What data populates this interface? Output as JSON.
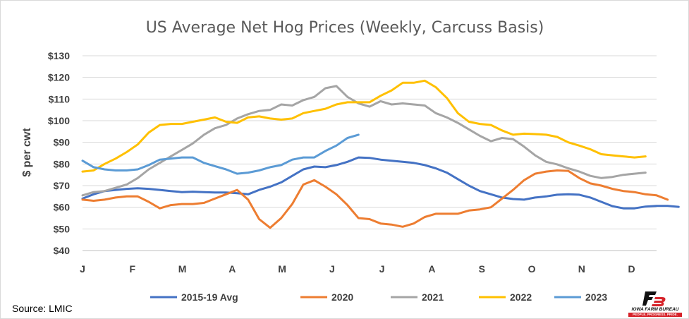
{
  "chart_data": {
    "type": "line",
    "title": "US Average Net Hog Prices (Weekly, Carcuss Basis)",
    "ylabel": "$ per cwt",
    "xlabel": "",
    "ylim": [
      40,
      130
    ],
    "yticks": [
      40,
      50,
      60,
      70,
      80,
      90,
      100,
      110,
      120,
      130
    ],
    "ytick_labels": [
      "$40",
      "$50",
      "$60",
      "$70",
      "$80",
      "$90",
      "$100",
      "$110",
      "$120",
      "$130"
    ],
    "xticks": [
      "J",
      "F",
      "M",
      "A",
      "M",
      "J",
      "J",
      "A",
      "S",
      "O",
      "N",
      "D"
    ],
    "x_unit": "week of year (1-53)",
    "grid": true,
    "legend_position": "bottom",
    "source": "Source: LMIC",
    "series": [
      {
        "name": "2015-19 Avg",
        "color": "#4472c4",
        "values": [
          64,
          66,
          67.5,
          68,
          68.5,
          68.8,
          68.5,
          68,
          67.5,
          67,
          67.2,
          67,
          66.8,
          66.8,
          66.5,
          66,
          68,
          69.5,
          71.5,
          74.5,
          77.5,
          78.8,
          78.5,
          79.5,
          81,
          83,
          82.8,
          82,
          81.5,
          81,
          80.5,
          79.5,
          78,
          76,
          73,
          70,
          67.5,
          66,
          64.5,
          63.8,
          63.5,
          64.5,
          65,
          65.8,
          66,
          65.8,
          64.5,
          62.5,
          60.5,
          59.5,
          59.5,
          60.3,
          60.6,
          60.6,
          60.2
        ]
      },
      {
        "name": "2020",
        "color": "#ed7d31",
        "values": [
          63.5,
          63,
          63.5,
          64.5,
          65,
          65,
          62.5,
          59.5,
          61,
          61.5,
          61.5,
          62,
          64,
          66,
          68,
          63.5,
          54.5,
          50.5,
          55,
          61.5,
          70.5,
          72.5,
          69.5,
          66,
          61,
          55,
          54.5,
          52.5,
          52,
          51,
          52.5,
          55.5,
          57,
          57,
          57,
          58.5,
          59,
          60,
          64,
          68,
          72.5,
          75.5,
          76.5,
          77,
          76.8,
          73.5,
          71,
          70,
          68.5,
          67.5,
          67,
          66,
          65.5,
          63.5
        ]
      },
      {
        "name": "2021",
        "color": "#a5a5a5",
        "values": [
          65.5,
          67,
          67.5,
          69,
          70.5,
          73.5,
          77.5,
          80.5,
          83.5,
          86.5,
          89.5,
          93.5,
          96.5,
          98,
          101,
          103,
          104.5,
          105,
          107.5,
          107,
          109.5,
          111,
          115,
          116,
          111,
          108,
          106.5,
          109,
          107.5,
          108,
          107.5,
          107,
          103.5,
          101.5,
          99,
          96,
          93,
          90.5,
          92,
          91.5,
          88,
          84,
          81,
          79.8,
          78,
          76.5,
          74.5,
          73.5,
          74,
          75,
          75.5,
          76
        ]
      },
      {
        "name": "2022",
        "color": "#ffc000",
        "values": [
          76.5,
          77,
          80,
          82.5,
          85.5,
          89,
          94.5,
          98,
          98.5,
          98.5,
          99.5,
          100.5,
          101.5,
          99.5,
          99,
          101.5,
          102,
          101,
          100.5,
          101,
          103.5,
          104.5,
          105.5,
          107.5,
          108.5,
          108.5,
          108.5,
          111.5,
          114,
          117.5,
          117.5,
          118.5,
          115.5,
          110.5,
          103.5,
          99.5,
          98.5,
          98,
          95.5,
          93.5,
          94,
          93.8,
          93.5,
          92.5,
          90,
          88.5,
          86.8,
          84.5,
          84,
          83.5,
          83,
          83.5
        ]
      },
      {
        "name": "2023",
        "color": "#5b9bd5",
        "values": [
          81.5,
          78.5,
          77.5,
          77,
          77,
          77.5,
          79.5,
          82,
          82.5,
          83,
          83,
          80.5,
          79,
          77.5,
          75.5,
          76,
          77,
          78.5,
          79.5,
          82,
          83,
          83,
          86,
          88.5,
          92,
          93.5
        ]
      }
    ]
  }
}
